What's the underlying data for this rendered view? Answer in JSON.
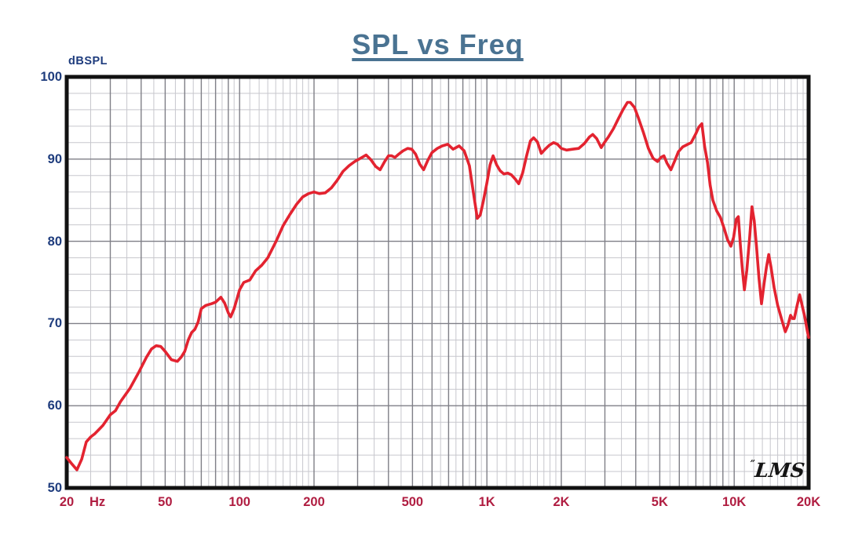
{
  "chart_data": {
    "type": "line",
    "title": "SPL vs Freq",
    "ylabel": "dBSPL",
    "xlabel": "Hz",
    "x_scale": "log",
    "xlim": [
      20,
      20000
    ],
    "ylim": [
      50,
      100
    ],
    "grid": true,
    "y_minor_step_db": 2,
    "y_major_step_db": 10,
    "logo": "LMS",
    "logo_mark": "”",
    "colors": {
      "curve": "#e32330",
      "grid_minor": "#c7c7cd",
      "grid_major": "#7f7f87",
      "frame": "#111111",
      "title": "#4a7392",
      "y_labels": "#1e3c7d",
      "x_labels": "#b01d41"
    },
    "x_ticks": [
      {
        "f": 20,
        "label": "20"
      },
      {
        "f": 50,
        "label": "50"
      },
      {
        "f": 100,
        "label": "100"
      },
      {
        "f": 200,
        "label": "200"
      },
      {
        "f": 500,
        "label": "500"
      },
      {
        "f": 1000,
        "label": "1K"
      },
      {
        "f": 2000,
        "label": "2K"
      },
      {
        "f": 5000,
        "label": "5K"
      },
      {
        "f": 10000,
        "label": "10K"
      },
      {
        "f": 20000,
        "label": "20K"
      }
    ],
    "y_ticks": [
      {
        "v": 100,
        "label": "100"
      },
      {
        "v": 90,
        "label": "90"
      },
      {
        "v": 80,
        "label": "80"
      },
      {
        "v": 70,
        "label": "70"
      },
      {
        "v": 60,
        "label": "60"
      },
      {
        "v": 50,
        "label": "50"
      }
    ],
    "series": [
      {
        "name": "SPL",
        "points": [
          [
            20,
            53.7
          ],
          [
            21,
            52.9
          ],
          [
            22,
            52.2
          ],
          [
            23,
            53.5
          ],
          [
            24,
            55.6
          ],
          [
            25,
            56.2
          ],
          [
            26,
            56.6
          ],
          [
            28,
            57.6
          ],
          [
            30,
            58.9
          ],
          [
            31.5,
            59.4
          ],
          [
            33,
            60.5
          ],
          [
            36,
            62.1
          ],
          [
            39,
            64
          ],
          [
            42,
            65.9
          ],
          [
            44,
            66.9
          ],
          [
            46,
            67.3
          ],
          [
            48,
            67.2
          ],
          [
            50,
            66.6
          ],
          [
            53,
            65.6
          ],
          [
            56,
            65.4
          ],
          [
            58,
            65.9
          ],
          [
            60,
            66.6
          ],
          [
            62,
            68
          ],
          [
            64,
            68.9
          ],
          [
            66,
            69.3
          ],
          [
            68,
            70.2
          ],
          [
            70,
            71.8
          ],
          [
            73,
            72.2
          ],
          [
            77,
            72.4
          ],
          [
            80,
            72.6
          ],
          [
            84,
            73.2
          ],
          [
            87,
            72.5
          ],
          [
            90,
            71.3
          ],
          [
            92,
            70.8
          ],
          [
            95,
            71.8
          ],
          [
            100,
            74.1
          ],
          [
            104,
            75
          ],
          [
            110,
            75.3
          ],
          [
            116,
            76.4
          ],
          [
            123,
            77.1
          ],
          [
            130,
            78
          ],
          [
            140,
            79.9
          ],
          [
            150,
            81.9
          ],
          [
            160,
            83.3
          ],
          [
            170,
            84.5
          ],
          [
            180,
            85.4
          ],
          [
            190,
            85.8
          ],
          [
            200,
            86
          ],
          [
            210,
            85.8
          ],
          [
            222,
            85.9
          ],
          [
            235,
            86.5
          ],
          [
            248,
            87.4
          ],
          [
            262,
            88.5
          ],
          [
            277,
            89.2
          ],
          [
            292,
            89.7
          ],
          [
            308,
            90.1
          ],
          [
            325,
            90.5
          ],
          [
            340,
            89.9
          ],
          [
            355,
            89.1
          ],
          [
            370,
            88.7
          ],
          [
            386,
            89.7
          ],
          [
            400,
            90.4
          ],
          [
            412,
            90.4
          ],
          [
            425,
            90.2
          ],
          [
            440,
            90.6
          ],
          [
            458,
            91
          ],
          [
            478,
            91.3
          ],
          [
            497,
            91.2
          ],
          [
            515,
            90.6
          ],
          [
            535,
            89.4
          ],
          [
            555,
            88.7
          ],
          [
            578,
            89.9
          ],
          [
            600,
            90.8
          ],
          [
            630,
            91.3
          ],
          [
            660,
            91.6
          ],
          [
            695,
            91.8
          ],
          [
            730,
            91.2
          ],
          [
            772,
            91.6
          ],
          [
            810,
            91
          ],
          [
            850,
            89.2
          ],
          [
            885,
            85.6
          ],
          [
            915,
            82.8
          ],
          [
            940,
            83.2
          ],
          [
            968,
            84.9
          ],
          [
            1000,
            87.1
          ],
          [
            1030,
            89.3
          ],
          [
            1060,
            90.4
          ],
          [
            1095,
            89.3
          ],
          [
            1130,
            88.6
          ],
          [
            1170,
            88.2
          ],
          [
            1215,
            88.3
          ],
          [
            1255,
            88.1
          ],
          [
            1300,
            87.6
          ],
          [
            1345,
            87
          ],
          [
            1395,
            88.3
          ],
          [
            1445,
            90.3
          ],
          [
            1500,
            92.2
          ],
          [
            1545,
            92.6
          ],
          [
            1600,
            92.1
          ],
          [
            1660,
            90.7
          ],
          [
            1720,
            91.2
          ],
          [
            1790,
            91.7
          ],
          [
            1860,
            92
          ],
          [
            1930,
            91.8
          ],
          [
            2000,
            91.3
          ],
          [
            2100,
            91.1
          ],
          [
            2220,
            91.2
          ],
          [
            2350,
            91.3
          ],
          [
            2480,
            91.9
          ],
          [
            2600,
            92.7
          ],
          [
            2680,
            93
          ],
          [
            2780,
            92.5
          ],
          [
            2900,
            91.4
          ],
          [
            3000,
            92.1
          ],
          [
            3100,
            92.7
          ],
          [
            3250,
            93.7
          ],
          [
            3400,
            94.9
          ],
          [
            3550,
            96
          ],
          [
            3700,
            96.9
          ],
          [
            3800,
            96.9
          ],
          [
            3950,
            96.3
          ],
          [
            4100,
            95
          ],
          [
            4300,
            93.2
          ],
          [
            4500,
            91.3
          ],
          [
            4700,
            90.1
          ],
          [
            4900,
            89.7
          ],
          [
            5050,
            90.2
          ],
          [
            5200,
            90.4
          ],
          [
            5350,
            89.5
          ],
          [
            5550,
            88.7
          ],
          [
            5750,
            89.8
          ],
          [
            5950,
            90.9
          ],
          [
            6200,
            91.5
          ],
          [
            6500,
            91.8
          ],
          [
            6700,
            92
          ],
          [
            7000,
            93.1
          ],
          [
            7200,
            93.9
          ],
          [
            7400,
            94.3
          ],
          [
            7600,
            91.5
          ],
          [
            7800,
            89.6
          ],
          [
            8000,
            86.8
          ],
          [
            8200,
            85
          ],
          [
            8500,
            83.7
          ],
          [
            8800,
            82.9
          ],
          [
            9100,
            81.6
          ],
          [
            9400,
            80.2
          ],
          [
            9700,
            79.4
          ],
          [
            9950,
            80.5
          ],
          [
            10200,
            82.7
          ],
          [
            10400,
            83
          ],
          [
            10600,
            79.5
          ],
          [
            10800,
            76.5
          ],
          [
            11000,
            74.1
          ],
          [
            11250,
            76.5
          ],
          [
            11550,
            80.5
          ],
          [
            11800,
            84.2
          ],
          [
            12050,
            82.5
          ],
          [
            12300,
            79.5
          ],
          [
            12600,
            75.5
          ],
          [
            12900,
            72.4
          ],
          [
            13200,
            74.8
          ],
          [
            13500,
            76.8
          ],
          [
            13800,
            78.4
          ],
          [
            14100,
            76.8
          ],
          [
            14500,
            74.4
          ],
          [
            15000,
            72.2
          ],
          [
            15500,
            70.7
          ],
          [
            16100,
            69
          ],
          [
            16500,
            69.8
          ],
          [
            16900,
            71
          ],
          [
            17200,
            70.6
          ],
          [
            17500,
            70.6
          ],
          [
            18000,
            72.3
          ],
          [
            18400,
            73.5
          ],
          [
            18800,
            72.3
          ],
          [
            19300,
            70.8
          ],
          [
            19700,
            69.3
          ],
          [
            20000,
            68.3
          ]
        ]
      }
    ]
  }
}
